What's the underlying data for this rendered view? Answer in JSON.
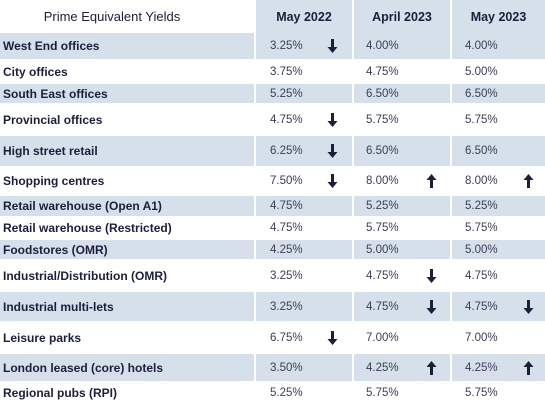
{
  "header": {
    "title": "Prime Equivalent Yields",
    "columns": [
      "May 2022",
      "April 2023",
      "May 2023"
    ]
  },
  "rows": [
    {
      "label": "West End offices",
      "values": [
        "3.25%",
        "4.00%",
        "4.00%"
      ],
      "arrows": [
        "down",
        "",
        ""
      ]
    },
    {
      "label": "City offices",
      "values": [
        "3.75%",
        "4.75%",
        "5.00%"
      ],
      "arrows": [
        "",
        "",
        ""
      ]
    },
    {
      "label": "South East offices",
      "values": [
        "5.25%",
        "6.50%",
        "6.50%"
      ],
      "arrows": [
        "",
        "",
        ""
      ]
    },
    {
      "label": "Provincial offices",
      "values": [
        "4.75%",
        "5.75%",
        "5.75%"
      ],
      "arrows": [
        "down",
        "",
        ""
      ]
    },
    {
      "label": "High street retail",
      "values": [
        "6.25%",
        "6.50%",
        "6.50%"
      ],
      "arrows": [
        "down",
        "",
        ""
      ]
    },
    {
      "label": "Shopping centres",
      "values": [
        "7.50%",
        "8.00%",
        "8.00%"
      ],
      "arrows": [
        "down",
        "up",
        "up"
      ]
    },
    {
      "label": "Retail warehouse (Open A1)",
      "values": [
        "4.75%",
        "5.25%",
        "5.25%"
      ],
      "arrows": [
        "",
        "",
        ""
      ]
    },
    {
      "label": "Retail warehouse (Restricted)",
      "values": [
        "4.75%",
        "5.75%",
        "5.75%"
      ],
      "arrows": [
        "",
        "",
        ""
      ]
    },
    {
      "label": "Foodstores (OMR)",
      "values": [
        "4.25%",
        "5.00%",
        "5.00%"
      ],
      "arrows": [
        "",
        "",
        ""
      ]
    },
    {
      "label": "Industrial/Distribution (OMR)",
      "values": [
        "3.25%",
        "4.75%",
        "4.75%"
      ],
      "arrows": [
        "",
        "down",
        ""
      ]
    },
    {
      "label": "Industrial multi-lets",
      "values": [
        "3.25%",
        "4.75%",
        "4.75%"
      ],
      "arrows": [
        "",
        "down",
        "down"
      ]
    },
    {
      "label": "Leisure parks",
      "values": [
        "6.75%",
        "7.00%",
        "7.00%"
      ],
      "arrows": [
        "down",
        "",
        ""
      ]
    },
    {
      "label": "London leased (core) hotels",
      "values": [
        "3.50%",
        "4.25%",
        "4.25%"
      ],
      "arrows": [
        "",
        "up",
        "up"
      ]
    },
    {
      "label": "Regional pubs (RPI)",
      "values": [
        "5.25%",
        "5.75%",
        "5.75%"
      ],
      "arrows": [
        "",
        "",
        ""
      ]
    }
  ],
  "colors": {
    "shade": "#d6e0ea",
    "arrow": "#1b1f3a"
  },
  "icons": {
    "down": "arrow-down-icon",
    "up": "arrow-up-icon"
  }
}
